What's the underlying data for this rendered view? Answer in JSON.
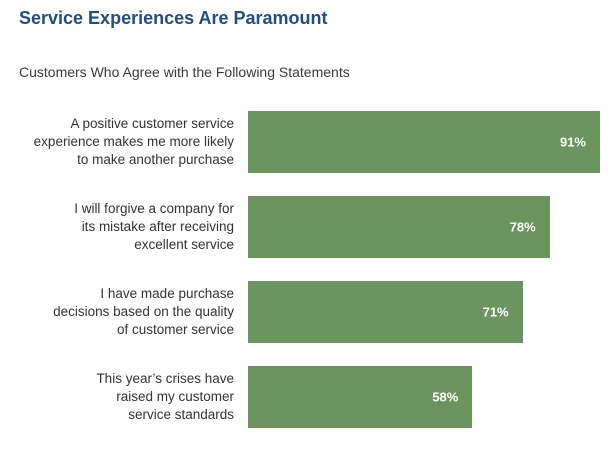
{
  "title": "Service Experiences Are Paramount",
  "subtitle": "Customers Who Agree with the Following Statements",
  "colors": {
    "title": "#1f4f82",
    "bar": "#6b945f",
    "bar_label": "#ffffff"
  },
  "chart_data": {
    "type": "bar",
    "orientation": "horizontal",
    "title": "Service Experiences Are Paramount",
    "subtitle": "Customers Who Agree with the Following Statements",
    "xlim": [
      0,
      100
    ],
    "grid": false,
    "legend": "none",
    "unit": "%",
    "categories": [
      "A positive customer service experience makes me more likely to make another purchase",
      "I will forgive a company for its mistake after receiving excellent service",
      "I have made purchase decisions based on the quality of customer service",
      "This year’s crises have raised my customer service standards"
    ],
    "category_lines": [
      [
        "A positive customer service",
        "experience makes me more likely",
        "to make another purchase"
      ],
      [
        "I will forgive a company for",
        "its mistake after receiving",
        "excellent service"
      ],
      [
        "I have made purchase",
        "decisions based on the quality",
        "of customer service"
      ],
      [
        "This year’s crises have",
        "raised my customer",
        "service standards"
      ]
    ],
    "values": [
      91,
      78,
      71,
      58
    ],
    "value_labels": [
      "91%",
      "78%",
      "71%",
      "58%"
    ]
  }
}
